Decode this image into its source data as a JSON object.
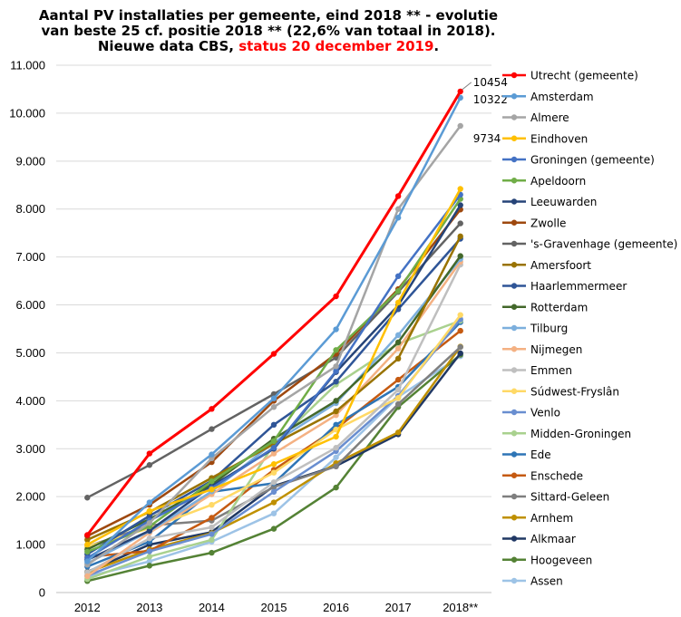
{
  "title": {
    "line1": "Aantal PV installaties  per gemeente, eind  2018 ** - evolutie",
    "line2": "van beste 25 cf. positie 2018 ** (22,6% van totaal in  2018).",
    "line3_prefix": "Nieuwe data CBS, ",
    "line3_status": "status 20 december 2019",
    "line3_suffix": "."
  },
  "colors": {
    "title_status": "#ff0000",
    "grid": "#d9d9d9",
    "axis": "#bfbfbf"
  },
  "chart_data": {
    "type": "line",
    "categories": [
      "2012",
      "2013",
      "2014",
      "2015",
      "2016",
      "2017",
      "2018**"
    ],
    "ylim": [
      0,
      11000
    ],
    "ytick_labels": [
      "0",
      "1.000",
      "2.000",
      "3.000",
      "4.000",
      "5.000",
      "6.000",
      "7.000",
      "8.000",
      "9.000",
      "10.000",
      "11.000"
    ],
    "grid": true,
    "legend_position": "right",
    "data_labels": [
      {
        "series": "Utrecht (gemeente)",
        "text": "10454"
      },
      {
        "series": "Amsterdam",
        "text": "10322"
      },
      {
        "series": "Almere",
        "text": "9734"
      }
    ],
    "series": [
      {
        "name": "Utrecht (gemeente)",
        "color": "#ff0000",
        "values": [
          1200,
          2900,
          3830,
          4980,
          6180,
          8270,
          10454
        ]
      },
      {
        "name": "Amsterdam",
        "color": "#5b9bd5",
        "values": [
          650,
          1880,
          2880,
          4050,
          5490,
          7820,
          10322
        ]
      },
      {
        "name": "Almere",
        "color": "#a5a5a5",
        "values": [
          580,
          1450,
          2800,
          3870,
          4720,
          8000,
          9734
        ]
      },
      {
        "name": "Eindhoven",
        "color": "#ffc000",
        "values": [
          1000,
          1700,
          2150,
          2680,
          3250,
          6050,
          8420
        ]
      },
      {
        "name": "Groningen (gemeente)",
        "color": "#4472c4",
        "values": [
          720,
          1500,
          2180,
          3020,
          4620,
          6600,
          8300
        ]
      },
      {
        "name": "Apeldoorn",
        "color": "#70ad47",
        "values": [
          850,
          1380,
          2320,
          3160,
          5060,
          6290,
          8210
        ]
      },
      {
        "name": "Leeuwarden",
        "color": "#264478",
        "values": [
          680,
          1290,
          2220,
          3000,
          4600,
          5990,
          8080
        ]
      },
      {
        "name": "Zwolle",
        "color": "#9e480e",
        "values": [
          1180,
          1830,
          2720,
          4000,
          4980,
          6330,
          7990
        ]
      },
      {
        "name": "'s-Gravenhage (gemeente)",
        "color": "#636363",
        "values": [
          1980,
          2660,
          3410,
          4140,
          4900,
          6270,
          7700
        ]
      },
      {
        "name": "Amersfoort",
        "color": "#997300",
        "values": [
          1100,
          1680,
          2390,
          3100,
          3780,
          4880,
          7430
        ]
      },
      {
        "name": "Haarlemmermeer",
        "color": "#2f5597",
        "values": [
          800,
          1600,
          2330,
          3500,
          4400,
          5910,
          7380
        ]
      },
      {
        "name": "Rotterdam",
        "color": "#43682b",
        "values": [
          900,
          1530,
          2250,
          3210,
          4000,
          5220,
          7020
        ]
      },
      {
        "name": "Tilburg",
        "color": "#7cafdd",
        "values": [
          610,
          1280,
          2110,
          3130,
          3950,
          5370,
          6960
        ]
      },
      {
        "name": "Nijmegen",
        "color": "#f4b183",
        "values": [
          340,
          1250,
          2050,
          2900,
          3700,
          5090,
          6900
        ]
      },
      {
        "name": "Emmen",
        "color": "#bfbfbf",
        "values": [
          420,
          1130,
          1360,
          2300,
          3020,
          4230,
          6840
        ]
      },
      {
        "name": "Súdwest-Fryslân",
        "color": "#ffd966",
        "values": [
          960,
          1340,
          1830,
          2500,
          3400,
          4060,
          5790
        ]
      },
      {
        "name": "Venlo",
        "color": "#698ed0",
        "values": [
          350,
          860,
          1220,
          2100,
          2950,
          4100,
          5700
        ]
      },
      {
        "name": "Midden-Groningen",
        "color": "#a9d18e",
        "values": [
          280,
          750,
          1100,
          3090,
          4340,
          5190,
          5670
        ]
      },
      {
        "name": "Ede",
        "color": "#2e75b6",
        "values": [
          540,
          1060,
          2100,
          2280,
          3500,
          4290,
          5640
        ]
      },
      {
        "name": "Enschede",
        "color": "#c55a11",
        "values": [
          740,
          870,
          1560,
          2560,
          3420,
          4440,
          5460
        ]
      },
      {
        "name": "Sittard-Geleen",
        "color": "#7f7f7f",
        "values": [
          960,
          1400,
          1500,
          2200,
          2630,
          3930,
          5120
        ]
      },
      {
        "name": "Arnhem",
        "color": "#bf9000",
        "values": [
          420,
          900,
          1240,
          1880,
          2700,
          3340,
          5130
        ]
      },
      {
        "name": "Alkmaar",
        "color": "#203864",
        "values": [
          430,
          1000,
          1260,
          2220,
          2640,
          3300,
          4990
        ]
      },
      {
        "name": "Hoogeveen",
        "color": "#548235",
        "values": [
          240,
          560,
          830,
          1330,
          2190,
          3870,
          4960
        ]
      },
      {
        "name": "Assen",
        "color": "#9dc3e6",
        "values": [
          330,
          650,
          1060,
          1650,
          2820,
          4080,
          4930
        ]
      }
    ]
  }
}
